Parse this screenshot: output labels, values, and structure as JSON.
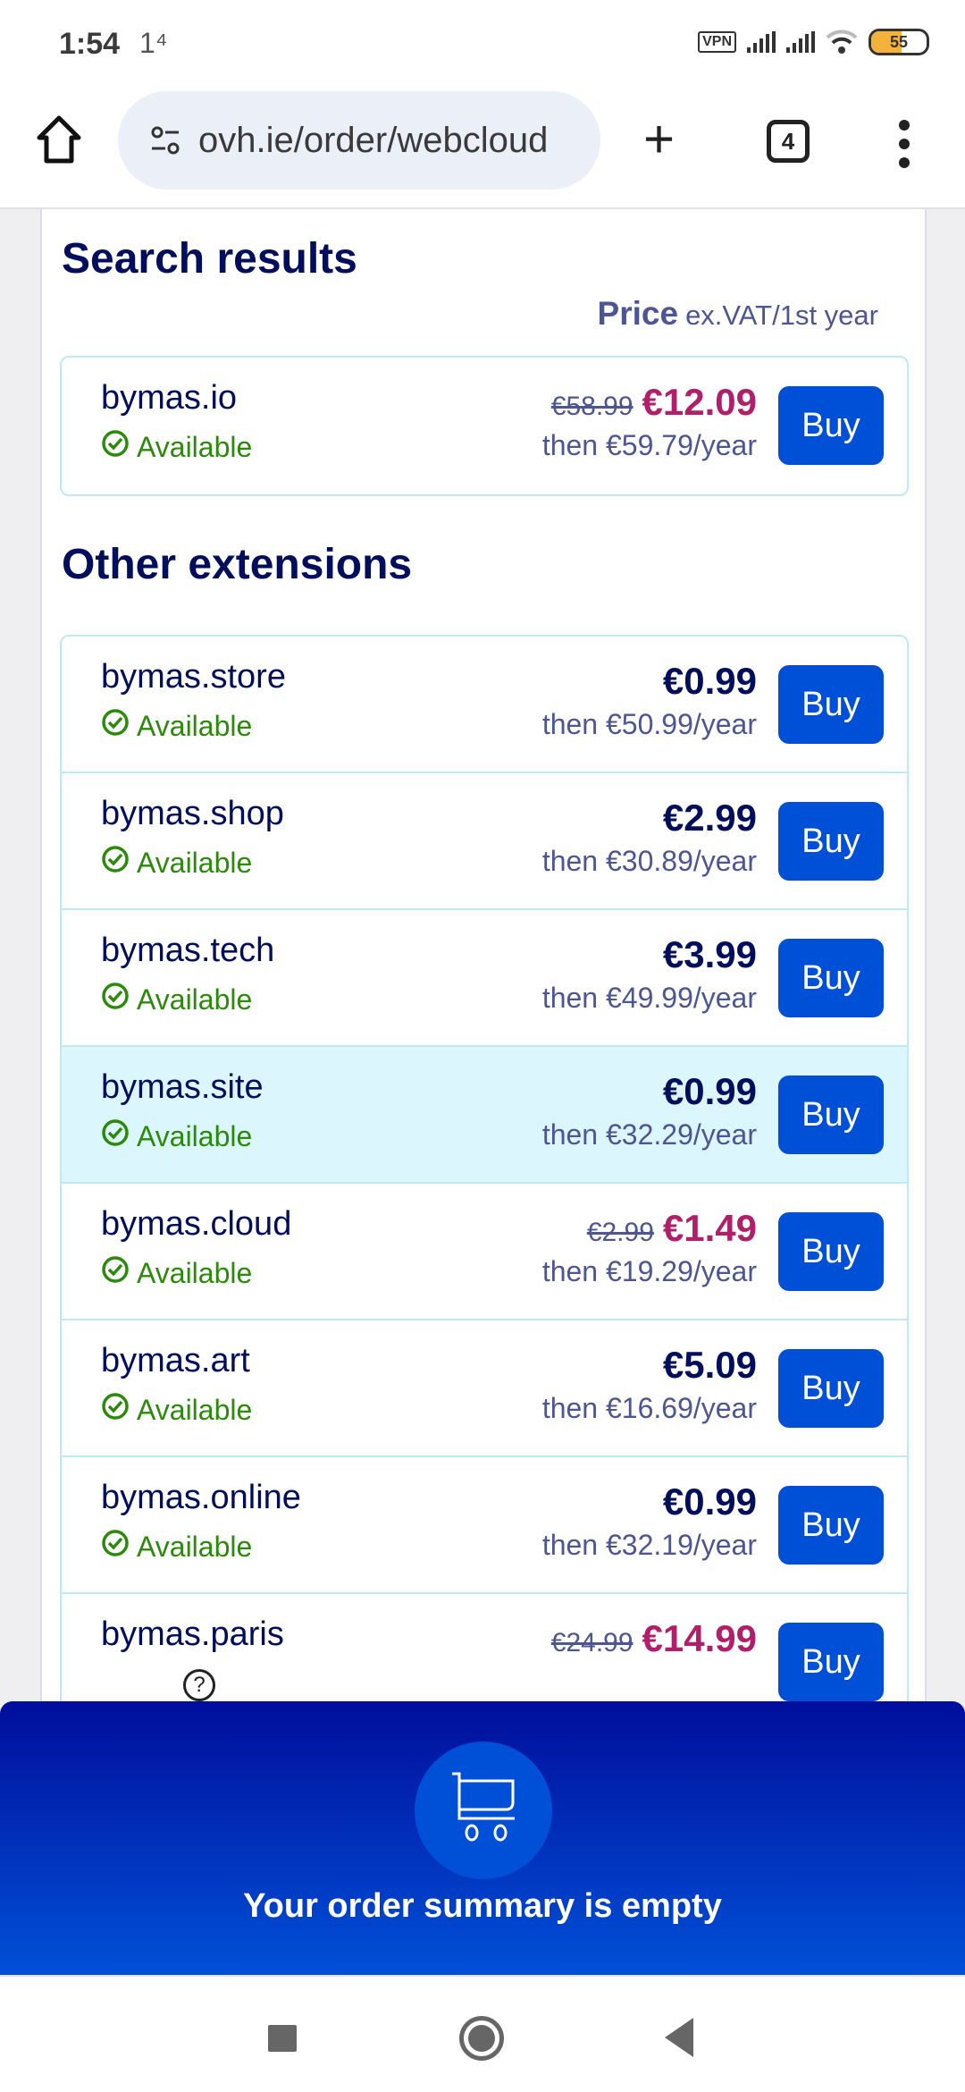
{
  "status": {
    "time": "1:54",
    "notif": "1⁴",
    "vpn": "VPN",
    "battery": "55"
  },
  "browser": {
    "url": "ovh.ie/order/webcloud",
    "tabs_count": "4",
    "plus": "+"
  },
  "search": {
    "title": "Search results",
    "price_label": "Price",
    "price_note": "ex.VAT/1st year",
    "result": {
      "domain": "bymas.io",
      "status": "Available",
      "old_price": "€58.99",
      "price": "€12.09",
      "promo": true,
      "then": "then €59.79/year",
      "buy": "Buy"
    }
  },
  "other": {
    "title": "Other extensions",
    "rows": [
      {
        "domain": "bymas.store",
        "status": "Available",
        "old_price": "",
        "price": "€0.99",
        "promo": false,
        "then": "then €50.99/year",
        "buy": "Buy"
      },
      {
        "domain": "bymas.shop",
        "status": "Available",
        "old_price": "",
        "price": "€2.99",
        "promo": false,
        "then": "then €30.89/year",
        "buy": "Buy"
      },
      {
        "domain": "bymas.tech",
        "status": "Available",
        "old_price": "",
        "price": "€3.99",
        "promo": false,
        "then": "then €49.99/year",
        "buy": "Buy"
      },
      {
        "domain": "bymas.site",
        "status": "Available",
        "old_price": "",
        "price": "€0.99",
        "promo": false,
        "then": "then €32.29/year",
        "buy": "Buy",
        "highlighted": true
      },
      {
        "domain": "bymas.cloud",
        "status": "Available",
        "old_price": "€2.99",
        "price": "€1.49",
        "promo": true,
        "then": "then €19.29/year",
        "buy": "Buy"
      },
      {
        "domain": "bymas.art",
        "status": "Available",
        "old_price": "",
        "price": "€5.09",
        "promo": false,
        "then": "then €16.69/year",
        "buy": "Buy"
      },
      {
        "domain": "bymas.online",
        "status": "Available",
        "old_price": "",
        "price": "€0.99",
        "promo": false,
        "then": "then €32.19/year",
        "buy": "Buy"
      },
      {
        "domain": "bymas.paris",
        "status": "unknown",
        "old_price": "€24.99",
        "price": "€14.99",
        "promo": true,
        "then": "",
        "buy": "Buy"
      }
    ]
  },
  "order": {
    "empty_text": "Your order summary is empty"
  },
  "colors": {
    "navy": "#000e5c",
    "primary": "#0050d7",
    "promo": "#b0206a",
    "available": "#2b8a0a",
    "highlight": "#dcf6fd"
  }
}
